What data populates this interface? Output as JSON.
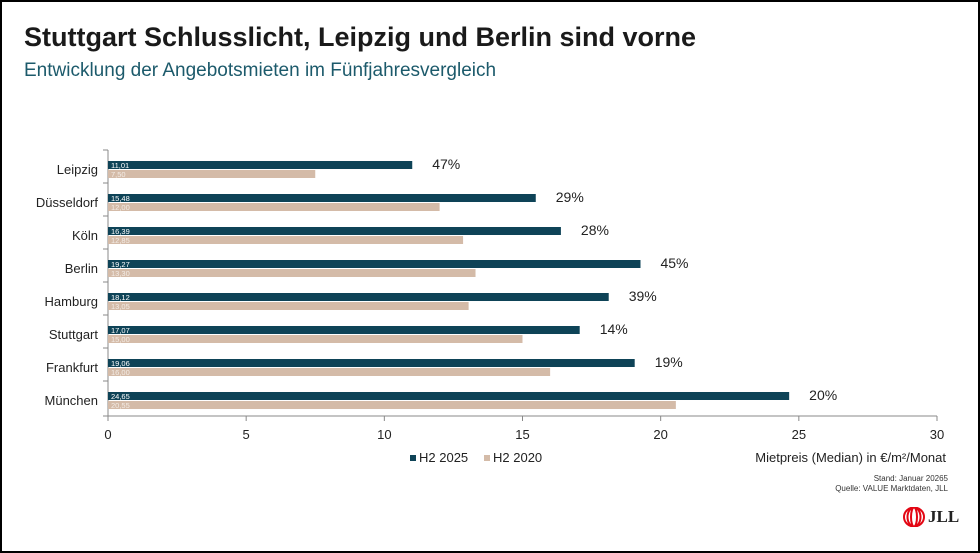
{
  "header": {
    "title": "Stuttgart Schlusslicht, Leipzig und Berlin sind vorne",
    "subtitle": "Entwicklung der Angebotsmieten im Fünfjahresvergleich"
  },
  "footer": {
    "stand": "Stand: Januar 20265",
    "quelle": "Quelle: VALUE Marktdaten, JLL",
    "logo": "JLL"
  },
  "chart_data": {
    "type": "bar",
    "orientation": "horizontal",
    "categories": [
      "Leipzig",
      "Düsseldorf",
      "Köln",
      "Berlin",
      "Hamburg",
      "Stuttgart",
      "Frankfurt",
      "München"
    ],
    "series": [
      {
        "name": "H2 2025",
        "color": "#0e4357",
        "values": [
          11.01,
          15.48,
          16.39,
          19.27,
          18.12,
          17.07,
          19.06,
          24.65
        ],
        "labels": [
          "11,01",
          "15,48",
          "16,39",
          "19,27",
          "18,12",
          "17,07",
          "19,06",
          "24,65"
        ]
      },
      {
        "name": "H2 2020",
        "color": "#d4bba8",
        "values": [
          7.5,
          12.0,
          12.85,
          13.3,
          13.05,
          15.0,
          16.0,
          20.55
        ],
        "labels": [
          "7,50",
          "12,00",
          "12,85",
          "13,30",
          "13,05",
          "15,00",
          "16,00",
          "20,55"
        ]
      }
    ],
    "growth_labels": [
      "47%",
      "29%",
      "28%",
      "45%",
      "39%",
      "14%",
      "19%",
      "20%"
    ],
    "xlabel": "Mietpreis (Median) in €/m²/Monat",
    "xlim": [
      0,
      30
    ],
    "xticks": [
      0,
      5,
      10,
      15,
      20,
      25,
      30
    ],
    "legend_position": "bottom",
    "grid": false
  }
}
